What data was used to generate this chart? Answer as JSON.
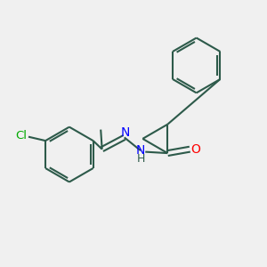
{
  "background_color": "#f0f0f0",
  "bond_color": "#2d5a4a",
  "n_color": "#0000ff",
  "o_color": "#ff0000",
  "cl_color": "#00aa00",
  "line_width": 1.5,
  "figsize": [
    3.0,
    3.0
  ],
  "dpi": 100,
  "xlim": [
    0,
    10
  ],
  "ylim": [
    0,
    10
  ]
}
